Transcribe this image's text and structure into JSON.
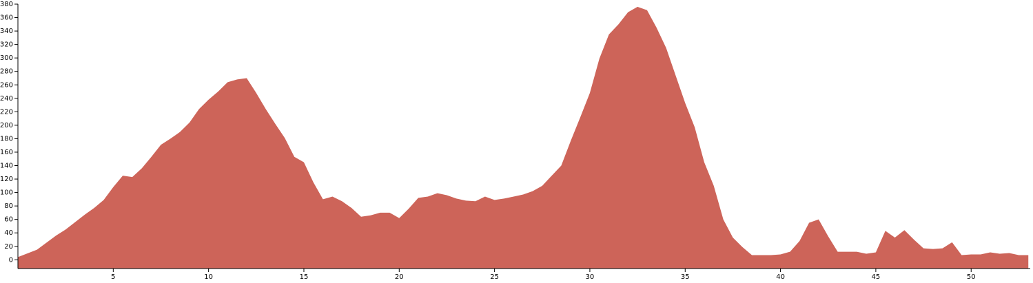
{
  "chart_data": {
    "type": "area",
    "color": "#cd6459",
    "x": [
      0,
      1,
      2,
      2.5,
      3,
      3.5,
      4,
      4.5,
      5,
      5.5,
      6,
      6.5,
      7,
      7.5,
      8,
      8.5,
      9,
      9.5,
      10,
      10.5,
      11,
      11.5,
      12,
      12.5,
      13,
      13.5,
      14,
      14.5,
      15,
      15.5,
      16,
      16.5,
      17,
      17.5,
      18,
      18.5,
      19,
      19.5,
      20,
      20.5,
      21,
      21.5,
      22,
      22.5,
      23,
      23.5,
      24,
      24.5,
      25,
      25.5,
      26,
      26.5,
      27,
      27.5,
      28,
      28.5,
      29,
      29.5,
      30,
      30.5,
      31,
      31.5,
      32,
      32.5,
      33,
      33.5,
      34,
      34.5,
      35,
      35.5,
      36,
      36.5,
      37,
      37.5,
      38,
      38.5,
      39,
      39.5,
      40,
      40.5,
      41,
      41.5,
      42,
      42.5,
      43,
      43.5,
      44,
      44.5,
      45,
      45.5,
      46,
      46.5,
      47,
      47.5,
      48,
      48.5,
      49,
      49.5,
      50,
      50.5,
      51,
      51.5,
      52,
      52.5,
      53
    ],
    "values": [
      4,
      15,
      36,
      45,
      56,
      67,
      77,
      89,
      108,
      125,
      123,
      136,
      153,
      171,
      180,
      190,
      204,
      224,
      238,
      250,
      264,
      268,
      270,
      248,
      224,
      202,
      181,
      153,
      145,
      115,
      90,
      94,
      87,
      77,
      64,
      66,
      70,
      70,
      62,
      76,
      92,
      94,
      99,
      96,
      91,
      88,
      87,
      94,
      89,
      91,
      94,
      97,
      102,
      110,
      125,
      140,
      177,
      212,
      248,
      299,
      335,
      350,
      368,
      376,
      371,
      345,
      315,
      274,
      233,
      197,
      145,
      110,
      60,
      33,
      19,
      7,
      7,
      7,
      8,
      12,
      28,
      55,
      60,
      35,
      12,
      12,
      12,
      9,
      11,
      43,
      33,
      44,
      30,
      17,
      16,
      17,
      26,
      7,
      8,
      8,
      11,
      9,
      10,
      7,
      7
    ],
    "xlim": [
      0,
      53.1
    ],
    "xticks": [
      5,
      10,
      15,
      20,
      25,
      30,
      35,
      40,
      45,
      50
    ],
    "ylim": [
      -13,
      380
    ],
    "yticks": [
      0,
      20,
      40,
      60,
      80,
      100,
      120,
      140,
      160,
      180,
      200,
      220,
      240,
      260,
      280,
      300,
      320,
      340,
      360,
      380
    ]
  }
}
